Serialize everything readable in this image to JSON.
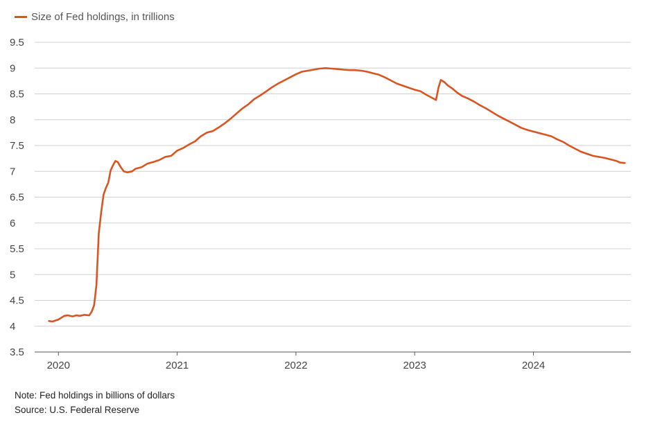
{
  "chart_data": {
    "type": "line",
    "legend": {
      "position": "top-left"
    },
    "series": [
      {
        "name": "Size of Fed holdings, in trillions",
        "color": "#d9541e",
        "points": [
          [
            2019.92,
            4.1
          ],
          [
            2019.95,
            4.09
          ],
          [
            2020.0,
            4.13
          ],
          [
            2020.05,
            4.2
          ],
          [
            2020.08,
            4.21
          ],
          [
            2020.12,
            4.19
          ],
          [
            2020.15,
            4.21
          ],
          [
            2020.18,
            4.2
          ],
          [
            2020.22,
            4.22
          ],
          [
            2020.26,
            4.21
          ],
          [
            2020.28,
            4.28
          ],
          [
            2020.3,
            4.4
          ],
          [
            2020.32,
            4.8
          ],
          [
            2020.33,
            5.3
          ],
          [
            2020.34,
            5.8
          ],
          [
            2020.36,
            6.2
          ],
          [
            2020.38,
            6.55
          ],
          [
            2020.4,
            6.68
          ],
          [
            2020.42,
            6.78
          ],
          [
            2020.44,
            7.02
          ],
          [
            2020.46,
            7.12
          ],
          [
            2020.48,
            7.2
          ],
          [
            2020.5,
            7.18
          ],
          [
            2020.52,
            7.1
          ],
          [
            2020.55,
            7.0
          ],
          [
            2020.58,
            6.98
          ],
          [
            2020.62,
            7.0
          ],
          [
            2020.65,
            7.05
          ],
          [
            2020.7,
            7.08
          ],
          [
            2020.75,
            7.15
          ],
          [
            2020.8,
            7.18
          ],
          [
            2020.85,
            7.22
          ],
          [
            2020.9,
            7.28
          ],
          [
            2020.95,
            7.3
          ],
          [
            2021.0,
            7.4
          ],
          [
            2021.05,
            7.45
          ],
          [
            2021.1,
            7.52
          ],
          [
            2021.15,
            7.58
          ],
          [
            2021.2,
            7.68
          ],
          [
            2021.25,
            7.75
          ],
          [
            2021.3,
            7.78
          ],
          [
            2021.35,
            7.85
          ],
          [
            2021.4,
            7.93
          ],
          [
            2021.45,
            8.02
          ],
          [
            2021.5,
            8.12
          ],
          [
            2021.55,
            8.22
          ],
          [
            2021.6,
            8.3
          ],
          [
            2021.65,
            8.4
          ],
          [
            2021.7,
            8.47
          ],
          [
            2021.75,
            8.55
          ],
          [
            2021.8,
            8.63
          ],
          [
            2021.85,
            8.7
          ],
          [
            2021.9,
            8.76
          ],
          [
            2021.95,
            8.82
          ],
          [
            2022.0,
            8.88
          ],
          [
            2022.05,
            8.93
          ],
          [
            2022.1,
            8.95
          ],
          [
            2022.15,
            8.97
          ],
          [
            2022.2,
            8.99
          ],
          [
            2022.25,
            9.0
          ],
          [
            2022.3,
            8.99
          ],
          [
            2022.35,
            8.98
          ],
          [
            2022.4,
            8.97
          ],
          [
            2022.45,
            8.96
          ],
          [
            2022.5,
            8.96
          ],
          [
            2022.55,
            8.95
          ],
          [
            2022.6,
            8.93
          ],
          [
            2022.65,
            8.9
          ],
          [
            2022.7,
            8.87
          ],
          [
            2022.75,
            8.82
          ],
          [
            2022.8,
            8.76
          ],
          [
            2022.85,
            8.7
          ],
          [
            2022.9,
            8.66
          ],
          [
            2022.95,
            8.62
          ],
          [
            2023.0,
            8.58
          ],
          [
            2023.05,
            8.55
          ],
          [
            2023.1,
            8.48
          ],
          [
            2023.15,
            8.42
          ],
          [
            2023.18,
            8.38
          ],
          [
            2023.2,
            8.62
          ],
          [
            2023.22,
            8.77
          ],
          [
            2023.25,
            8.73
          ],
          [
            2023.28,
            8.66
          ],
          [
            2023.32,
            8.6
          ],
          [
            2023.36,
            8.52
          ],
          [
            2023.4,
            8.46
          ],
          [
            2023.45,
            8.41
          ],
          [
            2023.5,
            8.35
          ],
          [
            2023.55,
            8.28
          ],
          [
            2023.6,
            8.22
          ],
          [
            2023.65,
            8.15
          ],
          [
            2023.7,
            8.08
          ],
          [
            2023.75,
            8.02
          ],
          [
            2023.8,
            7.96
          ],
          [
            2023.85,
            7.9
          ],
          [
            2023.9,
            7.84
          ],
          [
            2023.95,
            7.8
          ],
          [
            2024.0,
            7.77
          ],
          [
            2024.05,
            7.74
          ],
          [
            2024.1,
            7.71
          ],
          [
            2024.15,
            7.68
          ],
          [
            2024.2,
            7.62
          ],
          [
            2024.25,
            7.57
          ],
          [
            2024.3,
            7.5
          ],
          [
            2024.35,
            7.44
          ],
          [
            2024.4,
            7.38
          ],
          [
            2024.45,
            7.34
          ],
          [
            2024.5,
            7.3
          ],
          [
            2024.55,
            7.28
          ],
          [
            2024.6,
            7.26
          ],
          [
            2024.65,
            7.23
          ],
          [
            2024.7,
            7.2
          ],
          [
            2024.73,
            7.17
          ],
          [
            2024.77,
            7.16
          ]
        ]
      }
    ],
    "x_ticks": [
      {
        "value": 2020,
        "label": "2020"
      },
      {
        "value": 2021,
        "label": "2021"
      },
      {
        "value": 2022,
        "label": "2022"
      },
      {
        "value": 2023,
        "label": "2023"
      },
      {
        "value": 2024,
        "label": "2024"
      }
    ],
    "y_ticks": [
      "3.5",
      "4",
      "4.5",
      "5",
      "5.5",
      "6",
      "6.5",
      "7",
      "7.5",
      "8",
      "8.5",
      "9",
      "9.5"
    ],
    "xlim": [
      2019.8,
      2024.82
    ],
    "ylim": [
      3.5,
      9.5
    ],
    "grid": true
  },
  "footer": {
    "note": "Note: Fed holdings in billions of dollars",
    "source": "Source: U.S. Federal Reserve"
  }
}
